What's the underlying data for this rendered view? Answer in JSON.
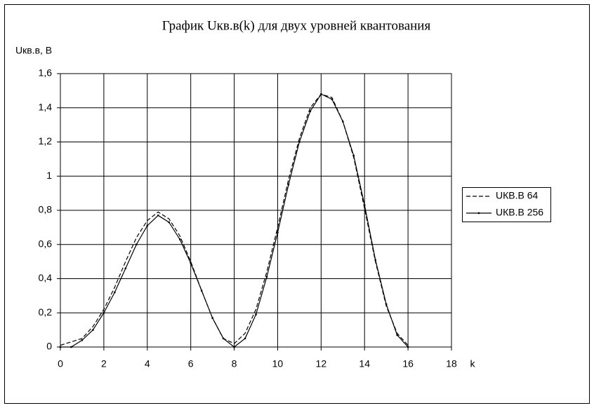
{
  "chart_data": {
    "type": "line",
    "title": "График Uкв.в(k) для двух уровней квантования",
    "y_label": "Uкв.в, В",
    "x_label": "k",
    "x": [
      0,
      0.5,
      1,
      1.5,
      2,
      2.5,
      3,
      3.5,
      4,
      4.5,
      5,
      5.5,
      6,
      6.5,
      7,
      7.5,
      8,
      8.5,
      9,
      9.5,
      10,
      10.5,
      11,
      11.5,
      12,
      12.5,
      13,
      13.5,
      14,
      14.5,
      15,
      15.5,
      16
    ],
    "series": [
      {
        "name": "UКВ.В 64",
        "color": "#000000",
        "dashed": true,
        "marker": false,
        "values": [
          0.01,
          0.03,
          0.05,
          0.12,
          0.22,
          0.35,
          0.5,
          0.64,
          0.74,
          0.79,
          0.75,
          0.65,
          0.5,
          0.33,
          0.17,
          0.05,
          0.02,
          0.08,
          0.22,
          0.44,
          0.7,
          0.98,
          1.22,
          1.4,
          1.48,
          1.46,
          1.32,
          1.11,
          0.81,
          0.5,
          0.24,
          0.08,
          0.01
        ]
      },
      {
        "name": "UКВ.В 256",
        "color": "#000000",
        "dashed": false,
        "marker": true,
        "values": [
          0,
          0,
          0.04,
          0.1,
          0.2,
          0.32,
          0.46,
          0.6,
          0.71,
          0.77,
          0.73,
          0.63,
          0.49,
          0.33,
          0.17,
          0.05,
          0,
          0.05,
          0.19,
          0.41,
          0.67,
          0.95,
          1.2,
          1.38,
          1.48,
          1.45,
          1.32,
          1.12,
          0.83,
          0.51,
          0.25,
          0.07,
          0
        ]
      }
    ],
    "xlim": [
      0,
      18
    ],
    "xticks": [
      0,
      2,
      4,
      6,
      8,
      10,
      12,
      14,
      16,
      18
    ],
    "ylim": [
      0,
      1.6
    ],
    "yticks": [
      0,
      {
        "value": 0.2,
        "label": "0,2"
      },
      {
        "value": 0.4,
        "label": "0,4"
      },
      {
        "value": 0.6,
        "label": "0,6"
      },
      {
        "value": 0.8,
        "label": "0,8"
      },
      1,
      {
        "value": 1.2,
        "label": "1,2"
      },
      {
        "value": 1.4,
        "label": "1,4"
      },
      {
        "value": 1.6,
        "label": "1,6"
      }
    ],
    "grid": true,
    "legend": "right"
  }
}
